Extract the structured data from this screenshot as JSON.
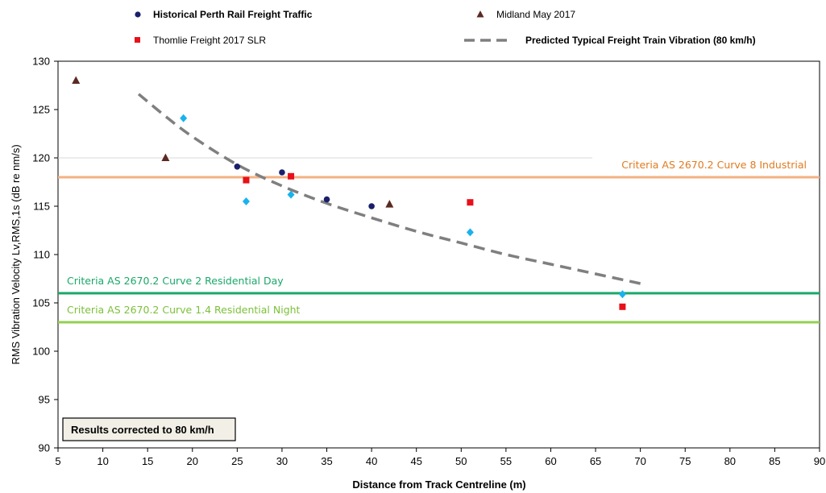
{
  "chart_data": {
    "type": "scatter",
    "xlabel": "Distance from Track Centreline (m)",
    "ylabel": "RMS Vibration Velocity Lv,RMS,1s (dB re nm/s)",
    "xlim": [
      5,
      90
    ],
    "ylim": [
      90,
      130
    ],
    "x_ticks": [
      "5",
      "10",
      "15",
      "20",
      "25",
      "30",
      "35",
      "40",
      "45",
      "50",
      "55",
      "60",
      "65",
      "70",
      "75",
      "80",
      "85",
      "90"
    ],
    "y_ticks": [
      "90",
      "95",
      "100",
      "105",
      "110",
      "115",
      "120",
      "125",
      "130"
    ],
    "grid": "horizontal-at-120",
    "legend_position": "top",
    "series": [
      {
        "name": "Historical Perth Rail Freight Traffic",
        "marker": "circle",
        "color": "#1a1f6b",
        "points": [
          [
            25,
            119.1
          ],
          [
            30,
            118.5
          ],
          [
            35,
            115.7
          ],
          [
            40,
            115.0
          ]
        ]
      },
      {
        "name": "Midland May 2017",
        "marker": "triangle",
        "color": "#5a2a22",
        "points": [
          [
            7,
            128.0
          ],
          [
            17,
            120.0
          ],
          [
            42,
            115.2
          ]
        ]
      },
      {
        "name": "Thomlie Freight 2017 SLR",
        "marker": "square",
        "color": "#e8101a",
        "points": [
          [
            26,
            117.7
          ],
          [
            31,
            118.1
          ],
          [
            51,
            115.4
          ],
          [
            68,
            104.6
          ]
        ]
      },
      {
        "name": "",
        "marker": "diamond",
        "color": "#1ab2ee",
        "points": [
          [
            19,
            124.1
          ],
          [
            26,
            115.5
          ],
          [
            31,
            116.2
          ],
          [
            51,
            112.3
          ],
          [
            68,
            105.9
          ]
        ]
      },
      {
        "name": "Predicted Typical Freight Train Vibration (80 km/h)",
        "marker": "dashed-line",
        "color": "#7f7f7f",
        "points": [
          [
            14,
            126.6
          ],
          [
            17,
            124.3
          ],
          [
            20,
            122.2
          ],
          [
            25,
            119.3
          ],
          [
            30,
            117.1
          ],
          [
            35,
            115.3
          ],
          [
            40,
            113.8
          ],
          [
            45,
            112.4
          ],
          [
            50,
            111.2
          ],
          [
            55,
            110.0
          ],
          [
            60,
            109.0
          ],
          [
            65,
            108.0
          ],
          [
            70,
            107.0
          ]
        ]
      }
    ],
    "criteria": [
      {
        "label": "Criteria AS 2670.2 Curve 8 Industrial",
        "value": 118,
        "color": "#f4b183",
        "text_color": "#e07b20",
        "label_anchor": "right"
      },
      {
        "label": "Criteria AS 2670.2 Curve 2 Residential Day",
        "value": 106,
        "color": "#1aa86a",
        "text_color": "#1aa86a",
        "label_anchor": "left"
      },
      {
        "label": "Criteria AS 2670.2 Curve 1.4 Residential Night",
        "value": 103,
        "color": "#92d050",
        "text_color": "#7cc13a",
        "label_anchor": "left"
      }
    ],
    "annotations": [
      "Results corrected to 80 km/h"
    ]
  }
}
